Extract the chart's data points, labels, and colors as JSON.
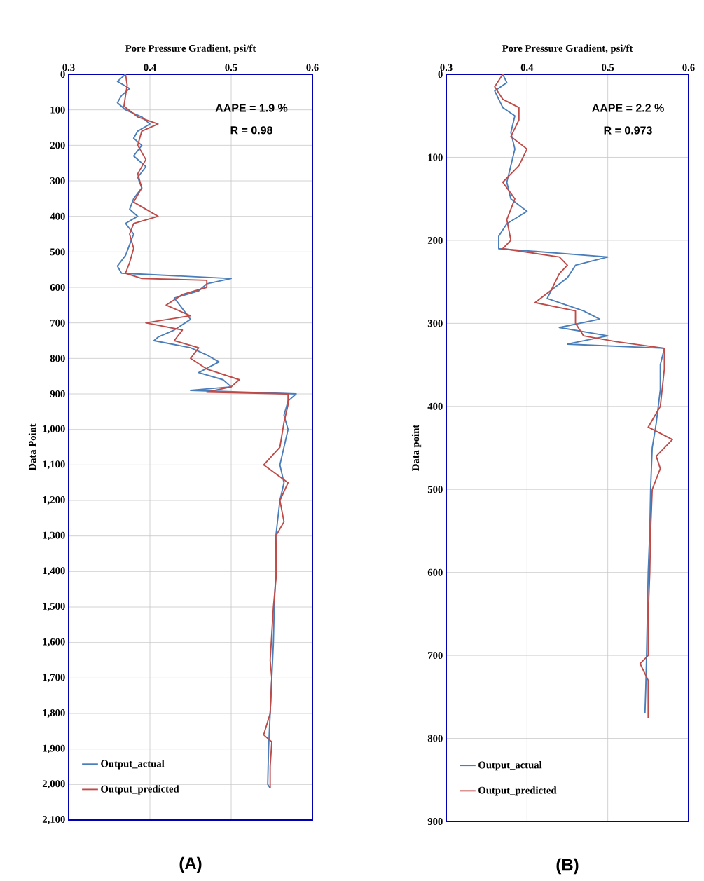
{
  "chart_data": [
    {
      "type": "line",
      "xlabel": "Pore Pressure Gradient, psi/ft",
      "ylabel": "Data Point",
      "xlim": [
        0.3,
        0.6
      ],
      "xticks": [
        0.3,
        0.4,
        0.5,
        0.6
      ],
      "ylim": [
        2100,
        0
      ],
      "yticks": [
        0,
        100,
        200,
        300,
        400,
        500,
        600,
        700,
        800,
        900,
        {
          "value": 1000,
          "label": "1,000"
        },
        {
          "value": 1100,
          "label": "1,100"
        },
        {
          "value": 1200,
          "label": "1,200"
        },
        {
          "value": 1300,
          "label": "1,300"
        },
        {
          "value": 1400,
          "label": "1,400"
        },
        {
          "value": 1500,
          "label": "1,500"
        },
        {
          "value": 1600,
          "label": "1,600"
        },
        {
          "value": 1700,
          "label": "1,700"
        },
        {
          "value": 1800,
          "label": "1,800"
        },
        {
          "value": 1900,
          "label": "1,900"
        },
        {
          "value": 2000,
          "label": "2,000"
        },
        {
          "value": 2100,
          "label": "2,100"
        }
      ],
      "grid": true,
      "legend": "bottom left",
      "annotations": [
        "AAPE = 1.9 %",
        "R = 0.98",
        "(A)"
      ],
      "series": [
        {
          "name": "Output_actual",
          "color": "#4a7ebb",
          "x": [
            0.37,
            0.36,
            0.375,
            0.365,
            0.36,
            0.37,
            0.39,
            0.4,
            0.385,
            0.38,
            0.39,
            0.38,
            0.395,
            0.385,
            0.39,
            0.38,
            0.375,
            0.385,
            0.37,
            0.38,
            0.375,
            0.37,
            0.36,
            0.365,
            0.5,
            0.47,
            0.46,
            0.43,
            0.44,
            0.45,
            0.43,
            0.41,
            0.405,
            0.45,
            0.47,
            0.485,
            0.46,
            0.49,
            0.5,
            0.45,
            0.58,
            0.57,
            0.565,
            0.57,
            0.565,
            0.56,
            0.565,
            0.56,
            0.555,
            0.555,
            0.553,
            0.552,
            0.55,
            0.548,
            0.546,
            0.545,
            0.548
          ],
          "values": [
            0,
            20,
            40,
            60,
            80,
            100,
            120,
            140,
            160,
            180,
            200,
            230,
            260,
            290,
            320,
            350,
            380,
            400,
            420,
            450,
            480,
            510,
            540,
            560,
            575,
            590,
            610,
            630,
            660,
            690,
            720,
            740,
            750,
            770,
            790,
            810,
            840,
            860,
            880,
            890,
            900,
            920,
            960,
            1000,
            1050,
            1100,
            1150,
            1200,
            1300,
            1400,
            1500,
            1600,
            1700,
            1800,
            1900,
            2000,
            2010
          ]
        },
        {
          "name": "Output_predicted",
          "color": "#be4b48",
          "x": [
            0.37,
            0.372,
            0.37,
            0.368,
            0.385,
            0.41,
            0.39,
            0.385,
            0.395,
            0.385,
            0.39,
            0.38,
            0.41,
            0.38,
            0.375,
            0.38,
            0.375,
            0.37,
            0.39,
            0.47,
            0.47,
            0.44,
            0.42,
            0.45,
            0.395,
            0.44,
            0.43,
            0.46,
            0.45,
            0.47,
            0.51,
            0.5,
            0.47,
            0.57,
            0.57,
            0.565,
            0.56,
            0.54,
            0.57,
            0.56,
            0.565,
            0.555,
            0.556,
            0.552,
            0.548,
            0.55,
            0.548,
            0.54,
            0.55,
            0.548,
            0.548
          ],
          "values": [
            0,
            30,
            60,
            90,
            120,
            140,
            160,
            200,
            240,
            280,
            320,
            360,
            400,
            420,
            450,
            490,
            530,
            560,
            575,
            580,
            600,
            620,
            650,
            680,
            700,
            720,
            750,
            770,
            800,
            830,
            860,
            880,
            895,
            900,
            930,
            980,
            1050,
            1100,
            1150,
            1200,
            1260,
            1300,
            1400,
            1500,
            1650,
            1700,
            1800,
            1860,
            1880,
            1950,
            2010
          ]
        }
      ]
    },
    {
      "type": "line",
      "xlabel": "Pore Pressure Gradient, psi/ft",
      "ylabel": "Data point",
      "xlim": [
        0.3,
        0.6
      ],
      "xticks": [
        0.3,
        0.4,
        0.5,
        0.6
      ],
      "ylim": [
        900,
        0
      ],
      "yticks": [
        0,
        100,
        200,
        300,
        400,
        500,
        600,
        700,
        800,
        900
      ],
      "grid": true,
      "legend": "bottom left",
      "annotations": [
        "AAPE = 2.2 %",
        "R = 0.973",
        "(B)"
      ],
      "series": [
        {
          "name": "Output_actual",
          "color": "#4a7ebb",
          "x": [
            0.37,
            0.375,
            0.36,
            0.37,
            0.385,
            0.38,
            0.385,
            0.38,
            0.375,
            0.38,
            0.4,
            0.375,
            0.365,
            0.365,
            0.5,
            0.46,
            0.45,
            0.43,
            0.425,
            0.47,
            0.49,
            0.44,
            0.5,
            0.45,
            0.57,
            0.565,
            0.565,
            0.56,
            0.555,
            0.553,
            0.552,
            0.55,
            0.549,
            0.548,
            0.547,
            0.546
          ],
          "values": [
            0,
            10,
            20,
            40,
            50,
            70,
            90,
            110,
            130,
            150,
            165,
            180,
            195,
            210,
            220,
            230,
            245,
            260,
            270,
            285,
            295,
            305,
            315,
            325,
            330,
            350,
            380,
            420,
            450,
            500,
            550,
            600,
            650,
            700,
            740,
            770
          ]
        },
        {
          "name": "Output_predicted",
          "color": "#be4b48",
          "x": [
            0.37,
            0.36,
            0.37,
            0.39,
            0.39,
            0.38,
            0.4,
            0.39,
            0.37,
            0.385,
            0.375,
            0.38,
            0.37,
            0.44,
            0.45,
            0.44,
            0.43,
            0.41,
            0.46,
            0.46,
            0.47,
            0.51,
            0.57,
            0.57,
            0.565,
            0.55,
            0.58,
            0.56,
            0.565,
            0.555,
            0.553,
            0.552,
            0.55,
            0.55,
            0.54,
            0.55,
            0.55
          ],
          "values": [
            0,
            15,
            30,
            40,
            55,
            75,
            90,
            110,
            130,
            150,
            175,
            200,
            210,
            220,
            230,
            240,
            260,
            275,
            285,
            300,
            315,
            322,
            330,
            355,
            400,
            425,
            440,
            460,
            475,
            500,
            550,
            600,
            650,
            700,
            710,
            730,
            775
          ]
        }
      ]
    }
  ]
}
